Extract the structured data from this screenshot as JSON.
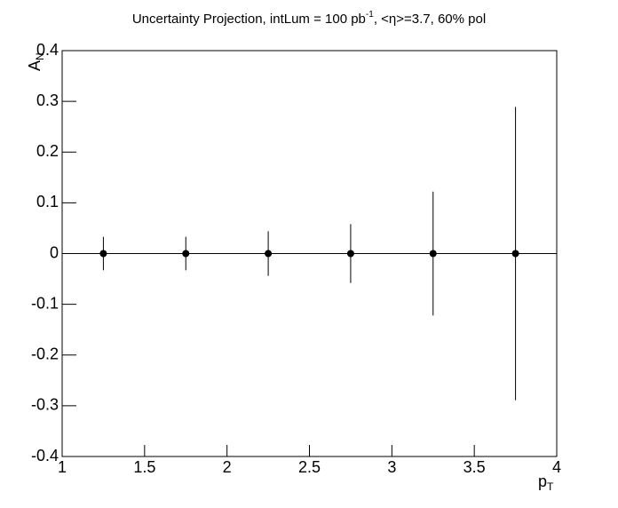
{
  "chart_data": {
    "type": "errorbar",
    "title": [
      "Uncertainty Projection, intLum = 100 pb",
      "-1",
      ", <η>=3.7, 60% pol"
    ],
    "x_label": [
      "p",
      "T"
    ],
    "y_label": [
      "A",
      "N"
    ],
    "x": [
      1.25,
      1.75,
      2.25,
      2.75,
      3.25,
      3.75
    ],
    "values": [
      0,
      0,
      0,
      0,
      0,
      0
    ],
    "errors": [
      0.033,
      0.033,
      0.044,
      0.058,
      0.122,
      0.289
    ],
    "color": "#000000",
    "xlim": [
      1,
      4
    ],
    "xticks": [
      1,
      1.5,
      2,
      2.5,
      3,
      3.5,
      4
    ],
    "ylim": [
      -0.4,
      0.4
    ],
    "yticks": [
      -0.4,
      -0.3,
      -0.2,
      -0.1,
      0,
      0.1,
      0.2,
      0.3,
      0.4
    ]
  }
}
